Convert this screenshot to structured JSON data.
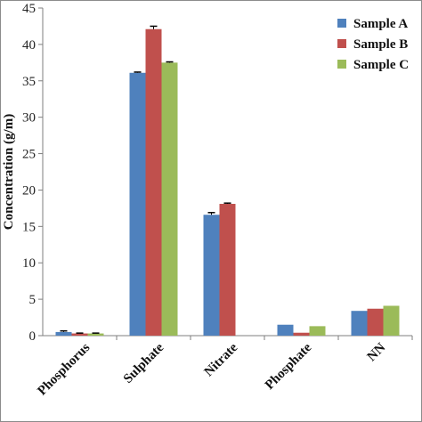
{
  "chart_data": {
    "type": "bar",
    "title": "",
    "xlabel": "",
    "ylabel": "Concentration (g/m)",
    "ylim": [
      0,
      45
    ],
    "yticks": [
      0,
      5,
      10,
      15,
      20,
      25,
      30,
      35,
      40,
      45
    ],
    "categories": [
      "Phosphorus",
      "Sulphate",
      "Nitrate",
      "Phosphate",
      "NN"
    ],
    "series": [
      {
        "name": "Sample A",
        "color": "#4f81bd",
        "values": [
          0.5,
          36.1,
          16.6,
          1.5,
          3.4
        ],
        "errors": [
          0.15,
          0.1,
          0.3,
          0,
          0
        ]
      },
      {
        "name": "Sample B",
        "color": "#c0504d",
        "values": [
          0.3,
          42.1,
          18.1,
          0.4,
          3.7
        ],
        "errors": [
          0.05,
          0.4,
          0.1,
          0,
          0
        ]
      },
      {
        "name": "Sample C",
        "color": "#9bbb59",
        "values": [
          0.3,
          37.5,
          0,
          1.3,
          4.1
        ],
        "errors": [
          0.05,
          0.1,
          0,
          0,
          0
        ]
      }
    ],
    "grid": false,
    "legend_position": "top-right"
  }
}
